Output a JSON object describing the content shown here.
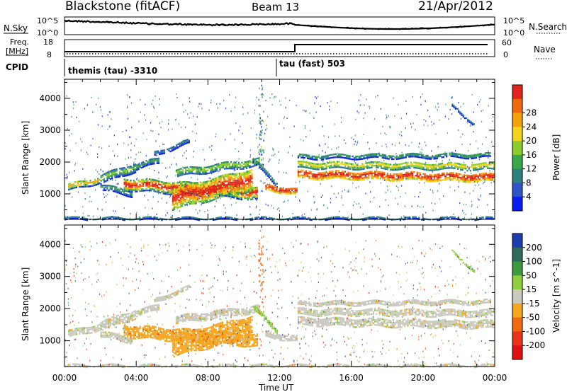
{
  "header": {
    "radar": "Blackstone (fitACF)",
    "beam": "Beam 13",
    "date": "21/Apr/2012"
  },
  "top_panels": {
    "nsky_label": "N.Sky",
    "nsearch_label": "N.Search",
    "nsky_ticks": [
      "10^5",
      "10^0"
    ],
    "nsearch_ticks": [
      "10^5",
      "10^0"
    ],
    "freq_label_1": "Freq.",
    "freq_label_2": "[MHz]",
    "freq_ticks": [
      "18",
      "8"
    ],
    "nave_label": "Nave",
    "nave_ticks": [
      "60",
      "0"
    ],
    "cpid_label": "CPID",
    "cpid_1": "themis (tau) -3310",
    "cpid_2": "tau (fast) 503"
  },
  "chart_data": [
    {
      "type": "heatmap",
      "panel": "power",
      "ylabel": "Slant Range [km]",
      "y_ticks": [
        1000,
        2000,
        3000,
        4000
      ],
      "ylim": [
        200,
        4600
      ],
      "colorbar_label": "Power [dB]",
      "colorbar_ticks": [
        "4",
        "8",
        "12",
        "16",
        "20",
        "24",
        "28"
      ],
      "colorbar_colors": [
        "#0b1cf0",
        "#2e55c8",
        "#2f7f7f",
        "#3aa64a",
        "#8ccc2c",
        "#f4d41a",
        "#f5a10a",
        "#f06a0c",
        "#e2231a"
      ]
    },
    {
      "type": "heatmap",
      "panel": "velocity",
      "ylabel": "Slant Range [km]",
      "y_ticks": [
        1000,
        2000,
        3000,
        4000
      ],
      "ylim": [
        200,
        4600
      ],
      "colorbar_label": "Velocity [m s^-1]",
      "colorbar_ticks": [
        "200",
        "100",
        "50",
        "15",
        "-15",
        "-50",
        "-100",
        "-200"
      ],
      "colorbar_colors": [
        "#1e3db0",
        "#2f6b5a",
        "#3c9a3c",
        "#8ccf3a",
        "#c9c9bf",
        "#f5a61c",
        "#f06a10",
        "#e8321a",
        "#e01010"
      ]
    }
  ],
  "x_axis": {
    "label": "Time UT",
    "ticks": [
      "00:00",
      "04:00",
      "08:00",
      "12:00",
      "16:00",
      "20:00",
      "00:00"
    ]
  }
}
